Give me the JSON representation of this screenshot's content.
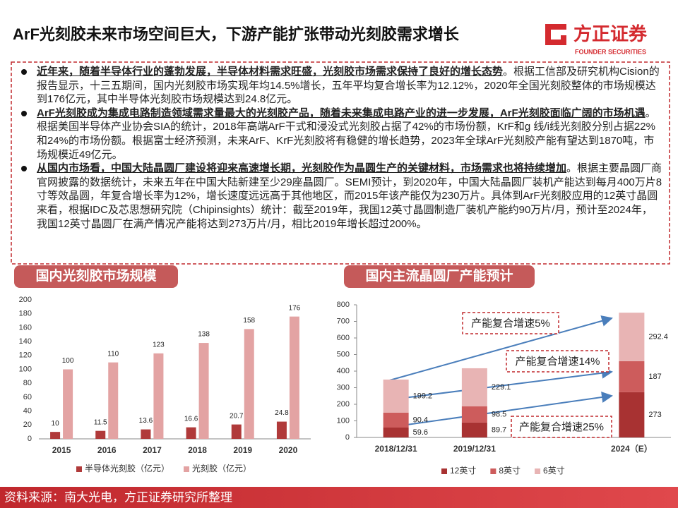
{
  "title": "ArF光刻胶未来市场空间巨大，下游产能扩张带动光刻胶需求增长",
  "logo": {
    "name": "方正证券",
    "english": "FOUNDER SECURITIES"
  },
  "bullets": [
    {
      "lead": "近年来，随着半导体行业的蓬勃发展，半导体材料需求旺盛，光刻胶市场需求保持了良好的增长态势",
      "text": "。根据工信部及研究机构Cision的报告显示，十三五期间，国内光刻胶市场实现年均14.5%增长，五年平均复合增长率为12.12%，2020年全国光刻胶整体的市场规模达到176亿元，其中半导体光刻胶市场规模达到24.8亿元。"
    },
    {
      "lead": "ArF光刻胶成为集成电路制造领域需求量最大的光刻胶产品，随着未来集成电路产业的进一步发展，ArF光刻胶面临广阔的市场机遇",
      "text": "。根据美国半导体产业协会SIA的统计，2018年高端ArF干式和浸没式光刻胶占据了42%的市场份额，KrF和g 线/i线光刻胶分别占据22%和24%的市场份额。根据富士经济预测，未来ArF、KrF光刻胶将有稳健的增长趋势，2023年全球ArF光刻胶产能有望达到1870吨，市场规模近49亿元。"
    },
    {
      "lead": "从国内市场看，中国大陆晶圆厂建设将迎来高速增长期，光刻胶作为晶圆生产的关键材料，市场需求也将持续增加",
      "text": "。根据主要晶圆厂商官网披露的数据统计，未来五年在中国大陆新建至少29座晶圆厂。SEMI预计，到2020年，中国大陆晶圆厂装机产能达到每月400万片8寸等效晶圆，年复合增长率为12%，增长速度远远高于其他地区，而2015年该产能仅为230万片。具体到ArF光刻胶应用的12英寸晶圆来看，根据IDC及芯思想研究院（Chipinsights）统计：截至2019年，我国12英寸晶圆制造厂装机产能约90万片/月，预计至2024年，我国12英寸晶圆厂在满产情况产能将达到273万片/月，相比2019年增长超过200%。"
    }
  ],
  "chart_data": [
    {
      "type": "bar",
      "title": "国内光刻胶市场规模",
      "stacked": false,
      "categories": [
        "2015",
        "2016",
        "2017",
        "2018",
        "2019",
        "2020"
      ],
      "series": [
        {
          "name": "半导体光刻胶（亿元）",
          "color": "#b03a3a",
          "values": [
            10,
            11.5,
            13.6,
            16.6,
            20.7,
            24.8
          ]
        },
        {
          "name": "光刻胶（亿元）",
          "color": "#e3a3a3",
          "values": [
            100,
            110,
            123,
            138,
            158,
            176
          ]
        }
      ],
      "ylim": [
        0,
        200
      ],
      "yticks": [
        0,
        20,
        40,
        60,
        80,
        100,
        120,
        140,
        160,
        180,
        200
      ],
      "grid": false
    },
    {
      "type": "bar",
      "title": "国内主流晶圆厂产能预计",
      "stacked": true,
      "categories": [
        "2018/12/31",
        "2019/12/31",
        null,
        "2024（E）"
      ],
      "series": [
        {
          "name": "12英寸",
          "color": "#a83232",
          "values": [
            59.6,
            89.7,
            null,
            273
          ]
        },
        {
          "name": "8英寸",
          "color": "#cd5c5c",
          "values": [
            90.4,
            98.5,
            null,
            187
          ]
        },
        {
          "name": "6英寸",
          "color": "#e8b4b4",
          "values": [
            199.2,
            229.1,
            null,
            292.4
          ]
        }
      ],
      "ylim": [
        0,
        800
      ],
      "yticks": [
        0,
        100,
        200,
        300,
        400,
        500,
        600,
        700,
        800
      ],
      "grid": false,
      "annotations": [
        "产能复合增速5%",
        "产能复合增速14%",
        "产能复合增速25%"
      ]
    }
  ],
  "source": "资料来源：南大光电，方正证券研究所整理"
}
